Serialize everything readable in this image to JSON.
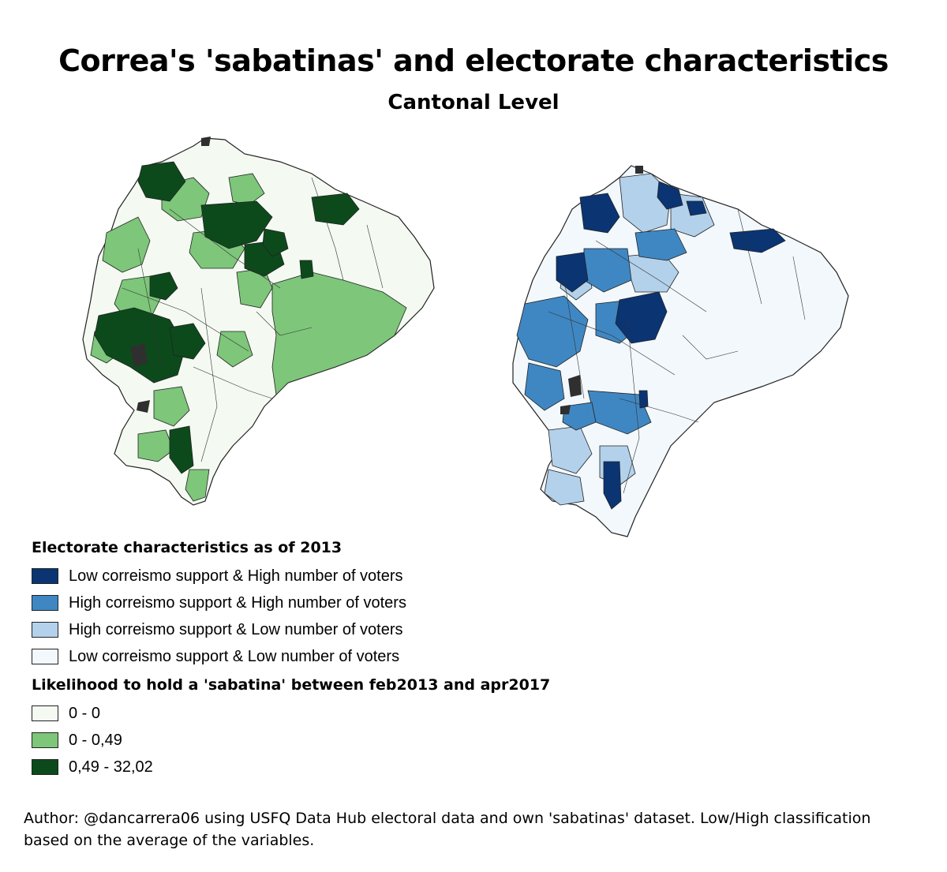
{
  "title": "Correa's 'sabatinas' and electorate characteristics",
  "subtitle": "Cantonal Level",
  "legend_electorate": {
    "title": "Electorate characteristics as of 2013",
    "items": [
      {
        "label": "Low correismo support  & High number of voters",
        "color": "#0b3473"
      },
      {
        "label": "High correismo support  & High number of voters",
        "color": "#3f87c2"
      },
      {
        "label": "High correismo support  & Low number of voters",
        "color": "#b3d1ea"
      },
      {
        "label": "Low correismo support  & Low number of voters",
        "color": "#f3f8fc"
      }
    ]
  },
  "legend_sabatina": {
    "title": "Likelihood to hold a 'sabatina' between feb2013 and apr2017",
    "items": [
      {
        "label": "0 - 0",
        "color": "#f4faf2"
      },
      {
        "label": "0 - 0,49",
        "color": "#7dc67a"
      },
      {
        "label": "0,49 - 32,02",
        "color": "#0c4a1c"
      }
    ]
  },
  "footer": "Author: @dancarrera06 using USFQ Data Hub electoral data and own 'sabatinas' dataset. Low/High classification based on the average of the variables."
}
